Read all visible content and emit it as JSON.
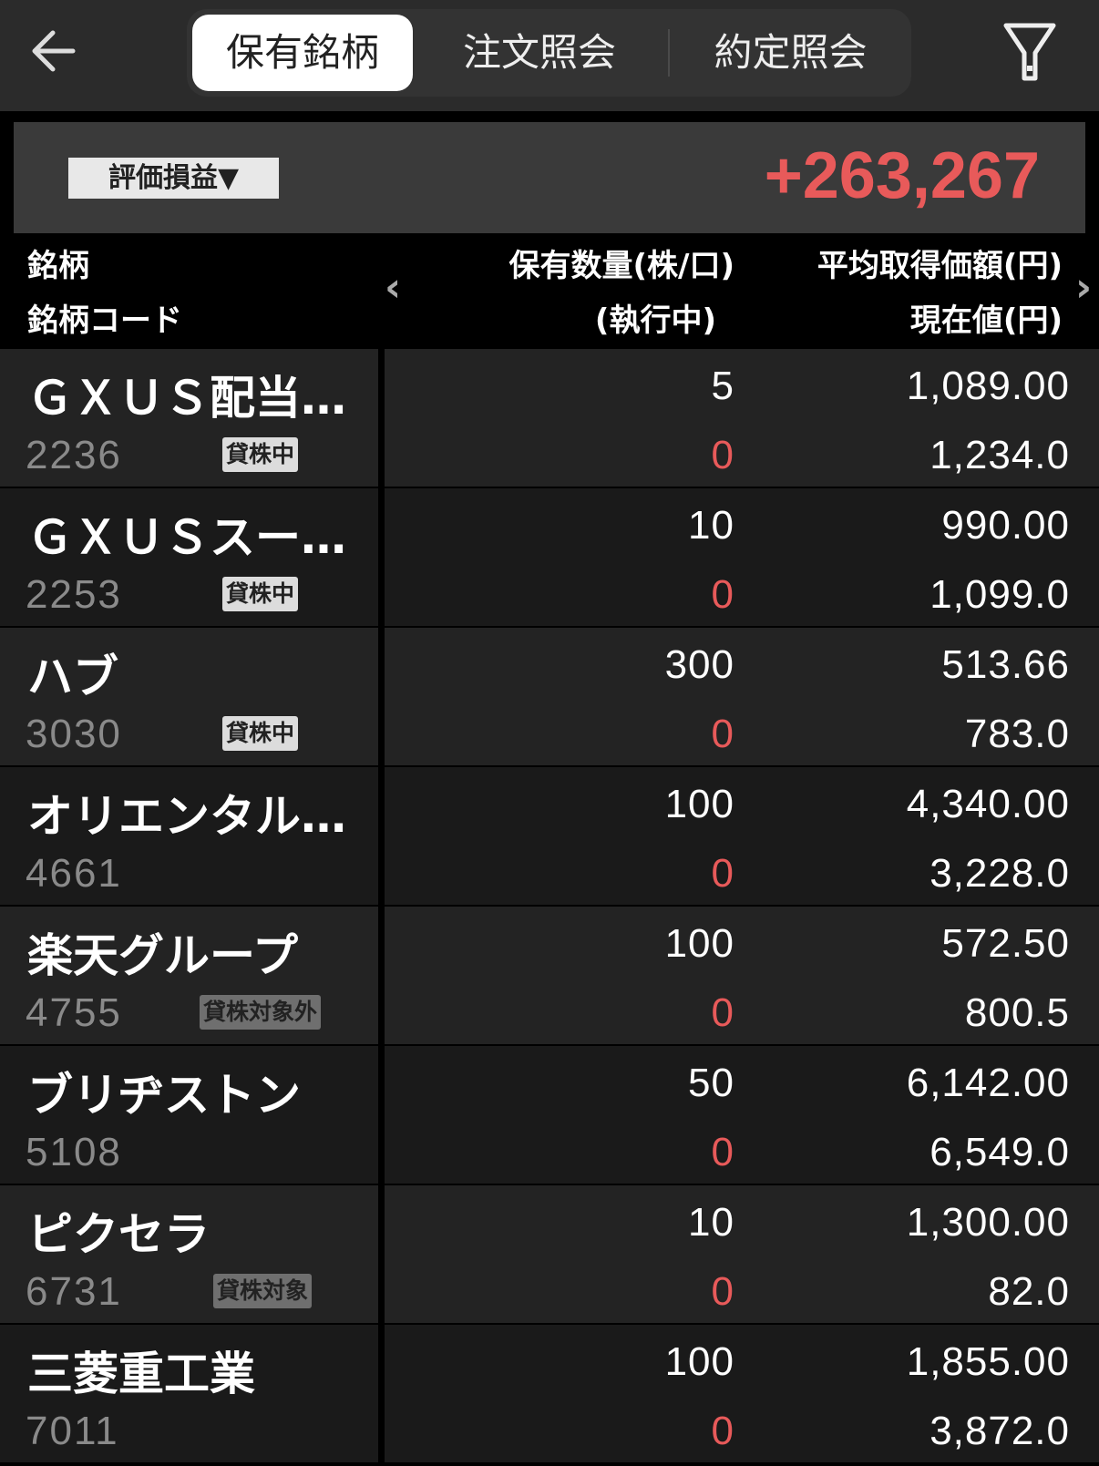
{
  "header": {
    "tabs": [
      {
        "label": "保有銘柄",
        "active": true
      },
      {
        "label": "注文照会",
        "active": false
      },
      {
        "label": "約定照会",
        "active": false
      }
    ],
    "back_icon": "arrow-left-icon",
    "filter_icon": "filter-icon"
  },
  "summary": {
    "selector_label": "評価損益▼",
    "value": "+263,267",
    "value_color": "#e85a5a"
  },
  "columns": {
    "name": "銘柄",
    "code": "銘柄コード",
    "qty": "保有数量(株/口)",
    "exec": "(執行中)",
    "avg": "平均取得価額(円)",
    "cur": "現在値(円)"
  },
  "rows": [
    {
      "name": "ＧＸＵＳ配当…",
      "code": "2236",
      "badge": "貸株中",
      "qty": "5",
      "exec": "0",
      "avg": "1,089.00",
      "cur": "1,234.0"
    },
    {
      "name": "ＧＸＵＳスー…",
      "code": "2253",
      "badge": "貸株中",
      "qty": "10",
      "exec": "0",
      "avg": "990.00",
      "cur": "1,099.0"
    },
    {
      "name": "ハブ",
      "code": "3030",
      "badge": "貸株中",
      "qty": "300",
      "exec": "0",
      "avg": "513.66",
      "cur": "783.0"
    },
    {
      "name": "オリエンタル…",
      "code": "4661",
      "badge": "",
      "qty": "100",
      "exec": "0",
      "avg": "4,340.00",
      "cur": "3,228.0"
    },
    {
      "name": "楽天グループ",
      "code": "4755",
      "badge": "貸株対象外",
      "qty": "100",
      "exec": "0",
      "avg": "572.50",
      "cur": "800.5"
    },
    {
      "name": "ブリヂストン",
      "code": "5108",
      "badge": "",
      "qty": "50",
      "exec": "0",
      "avg": "6,142.00",
      "cur": "6,549.0"
    },
    {
      "name": "ピクセラ",
      "code": "6731",
      "badge": "貸株対象",
      "qty": "10",
      "exec": "0",
      "avg": "1,300.00",
      "cur": "82.0"
    },
    {
      "name": "三菱重工業",
      "code": "7011",
      "badge": "",
      "qty": "100",
      "exec": "0",
      "avg": "1,855.00",
      "cur": "3,872.0"
    }
  ]
}
